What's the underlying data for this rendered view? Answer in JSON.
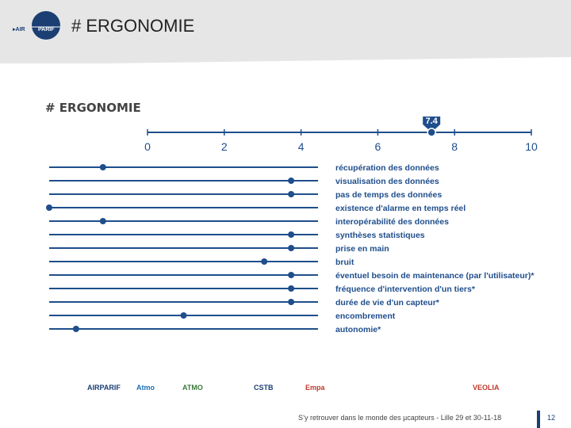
{
  "slide": {
    "title": "# ERGONOMIE",
    "section_title": "# ERGONOMIE",
    "logo_text": "AIRPARIF"
  },
  "chart_data": {
    "type": "dot",
    "axis_ticks": [
      "0",
      "2",
      "4",
      "6",
      "8",
      "10"
    ],
    "xlim": [
      0,
      10
    ],
    "average_marker": {
      "label": "7.4",
      "value": 7.4
    },
    "criteria": [
      {
        "label": "récupération des données",
        "value": 1
      },
      {
        "label": "visualisation des données",
        "value": 4.5
      },
      {
        "label": "pas de temps des données",
        "value": 4.5
      },
      {
        "label": "existence d'alarme en temps réel",
        "value": 0
      },
      {
        "label": "interopérabilité des données",
        "value": 1
      },
      {
        "label": "synthèses statistiques",
        "value": 4.5
      },
      {
        "label": "prise en main",
        "value": 4.5
      },
      {
        "label": "bruit",
        "value": 4
      },
      {
        "label": "éventuel besoin de maintenance (par l'utilisateur)*",
        "value": 4.5
      },
      {
        "label": "fréquence d'intervention d'un tiers*",
        "value": 4.5
      },
      {
        "label": "durée de vie d'un capteur*",
        "value": 4.5
      },
      {
        "label": "encombrement",
        "value": 2.5
      },
      {
        "label": "autonomie*",
        "value": 0.5
      }
    ],
    "colors": {
      "accent": "#1f4e8c",
      "text": "#1f4e8c"
    }
  },
  "footer": {
    "text": "S’y retrouver dans le monde des µcapteurs - Lille 29 et 30-11-18",
    "page": "12"
  },
  "partner_logos": [
    "AIRPARIF",
    "Atmo",
    "ATMO",
    "CSTB",
    "Empa",
    "VEOLIA"
  ]
}
